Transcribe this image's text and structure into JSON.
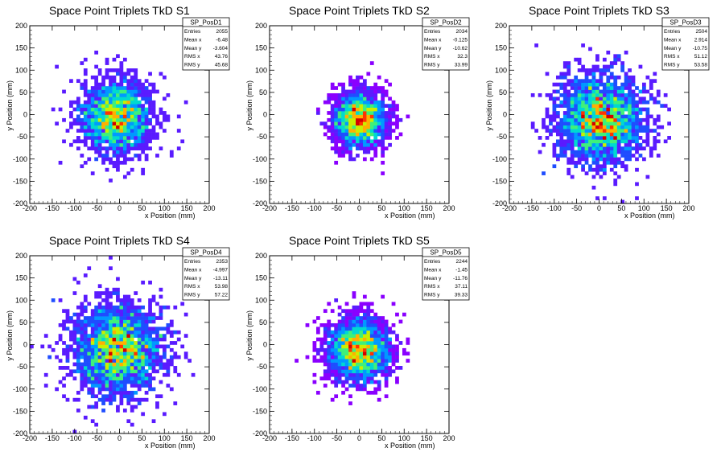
{
  "chart_data": [
    {
      "type": "heatmap",
      "title": "Space Point Triplets TkD S1",
      "xlabel": "x Position (mm)",
      "ylabel": "y Position (mm)",
      "xlim": [
        -200,
        200
      ],
      "ylim": [
        -200,
        200
      ],
      "xticks": [
        -200,
        -150,
        -100,
        -50,
        0,
        50,
        100,
        150,
        200
      ],
      "yticks": [
        -200,
        -150,
        -100,
        -50,
        0,
        50,
        100,
        150,
        200
      ],
      "stats": {
        "name": "SP_PosD1",
        "rows": [
          {
            "label": "Entries",
            "value": "2055"
          },
          {
            "label": "Mean x",
            "value": "-6.48"
          },
          {
            "label": "Mean y",
            "value": "-3.604"
          },
          {
            "label": "RMS x",
            "value": "43.76"
          },
          {
            "label": "RMS y",
            "value": "45.68"
          }
        ]
      },
      "distribution": {
        "mean_x": -6.48,
        "mean_y": -3.604,
        "rms_x": 43.76,
        "rms_y": 45.68,
        "entries": 2055
      }
    },
    {
      "type": "heatmap",
      "title": "Space Point Triplets TkD S2",
      "xlabel": "x Position (mm)",
      "ylabel": "y Position (mm)",
      "xlim": [
        -200,
        200
      ],
      "ylim": [
        -200,
        200
      ],
      "xticks": [
        -200,
        -150,
        -100,
        -50,
        0,
        50,
        100,
        150,
        200
      ],
      "yticks": [
        -200,
        -150,
        -100,
        -50,
        0,
        50,
        100,
        150,
        200
      ],
      "stats": {
        "name": "SP_PosD2",
        "rows": [
          {
            "label": "Entries",
            "value": "2034"
          },
          {
            "label": "Mean x",
            "value": "-0.125"
          },
          {
            "label": "Mean y",
            "value": "-10.62"
          },
          {
            "label": "RMS x",
            "value": "32.3"
          },
          {
            "label": "RMS y",
            "value": "33.99"
          }
        ]
      },
      "distribution": {
        "mean_x": -0.125,
        "mean_y": -10.62,
        "rms_x": 32.3,
        "rms_y": 33.99,
        "entries": 2034
      }
    },
    {
      "type": "heatmap",
      "title": "Space Point Triplets TkD S3",
      "xlabel": "x Position (mm)",
      "ylabel": "y Position (mm)",
      "xlim": [
        -200,
        200
      ],
      "ylim": [
        -200,
        200
      ],
      "xticks": [
        -200,
        -150,
        -100,
        -50,
        0,
        50,
        100,
        150,
        200
      ],
      "yticks": [
        -200,
        -150,
        -100,
        -50,
        0,
        50,
        100,
        150,
        200
      ],
      "stats": {
        "name": "SP_PosD3",
        "rows": [
          {
            "label": "Entries",
            "value": "2504"
          },
          {
            "label": "Mean x",
            "value": "2.914"
          },
          {
            "label": "Mean y",
            "value": "-10.75"
          },
          {
            "label": "RMS x",
            "value": "51.12"
          },
          {
            "label": "RMS y",
            "value": "53.58"
          }
        ]
      },
      "distribution": {
        "mean_x": 2.914,
        "mean_y": -10.75,
        "rms_x": 51.12,
        "rms_y": 53.58,
        "entries": 2504
      }
    },
    {
      "type": "heatmap",
      "title": "Space Point Triplets TkD S4",
      "xlabel": "x Position (mm)",
      "ylabel": "y Position (mm)",
      "xlim": [
        -200,
        200
      ],
      "ylim": [
        -200,
        200
      ],
      "xticks": [
        -200,
        -150,
        -100,
        -50,
        0,
        50,
        100,
        150,
        200
      ],
      "yticks": [
        -200,
        -150,
        -100,
        -50,
        0,
        50,
        100,
        150,
        200
      ],
      "stats": {
        "name": "SP_PosD4",
        "rows": [
          {
            "label": "Entries",
            "value": "2353"
          },
          {
            "label": "Mean x",
            "value": "-4.997"
          },
          {
            "label": "Mean y",
            "value": "-13.11"
          },
          {
            "label": "RMS x",
            "value": "53.98"
          },
          {
            "label": "RMS y",
            "value": "57.22"
          }
        ]
      },
      "distribution": {
        "mean_x": -4.997,
        "mean_y": -13.11,
        "rms_x": 53.98,
        "rms_y": 57.22,
        "entries": 2353
      }
    },
    {
      "type": "heatmap",
      "title": "Space Point Triplets TkD S5",
      "xlabel": "x Position (mm)",
      "ylabel": "y Position (mm)",
      "xlim": [
        -200,
        200
      ],
      "ylim": [
        -200,
        200
      ],
      "xticks": [
        -200,
        -150,
        -100,
        -50,
        0,
        50,
        100,
        150,
        200
      ],
      "yticks": [
        -200,
        -150,
        -100,
        -50,
        0,
        50,
        100,
        150,
        200
      ],
      "stats": {
        "name": "SP_PosD5",
        "rows": [
          {
            "label": "Entries",
            "value": "2244"
          },
          {
            "label": "Mean x",
            "value": "-1.45"
          },
          {
            "label": "Mean y",
            "value": "-11.76"
          },
          {
            "label": "RMS x",
            "value": "37.11"
          },
          {
            "label": "RMS y",
            "value": "39.33"
          }
        ]
      },
      "distribution": {
        "mean_x": -1.45,
        "mean_y": -11.76,
        "rms_x": 37.11,
        "rms_y": 39.33,
        "entries": 2244
      }
    }
  ],
  "colors": {
    "palette": [
      "#8a00ff",
      "#5a1bff",
      "#1f4dff",
      "#0099ff",
      "#00d9d0",
      "#3ff07a",
      "#c8f000",
      "#ffb000",
      "#ff3300",
      "#d40000"
    ],
    "axis": "#000000",
    "background": "#ffffff"
  }
}
